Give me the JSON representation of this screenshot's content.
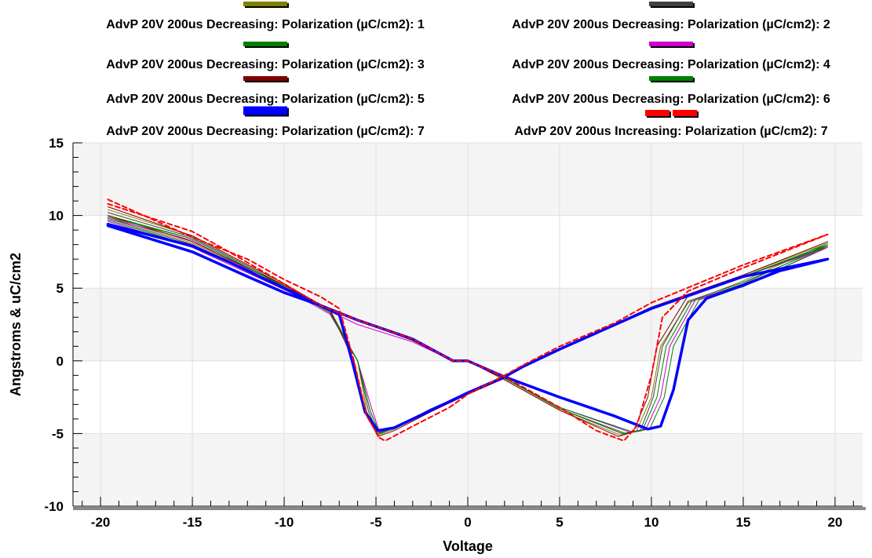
{
  "chart_data": {
    "type": "line",
    "title": "",
    "xlabel": "Voltage",
    "ylabel": "Angstroms & uC/cm2",
    "xlim": [
      -21.5,
      21.5
    ],
    "ylim": [
      -10,
      15
    ],
    "x_ticks": [
      -20,
      -15,
      -10,
      -5,
      0,
      5,
      10,
      15,
      20
    ],
    "y_ticks": [
      -10,
      -5,
      0,
      5,
      10,
      15
    ],
    "grid": true,
    "legend_position": "top",
    "series": [
      {
        "name": "AdvP 20V 200us Decreasing: Polarization (µC/cm2): 1",
        "color": "#808000",
        "style": "solid",
        "points": [
          [
            -19.6,
            10.4
          ],
          [
            -15,
            8.6
          ],
          [
            -10,
            5.3
          ],
          [
            -7.5,
            3.5
          ],
          [
            -6,
            0
          ],
          [
            -5.5,
            -3.5
          ],
          [
            -4.9,
            -5.1
          ],
          [
            -4,
            -4.7
          ],
          [
            -2,
            -3.4
          ],
          [
            0,
            -2.3
          ],
          [
            2,
            -1.2
          ],
          [
            3,
            -0.4
          ],
          [
            5,
            0.8
          ],
          [
            10,
            3.7
          ],
          [
            15,
            5.9
          ],
          [
            19.6,
            8.1
          ],
          [
            19.6,
            8.1
          ],
          [
            15,
            5.5
          ],
          [
            12,
            4
          ],
          [
            10.5,
            1
          ],
          [
            10,
            -2.5
          ],
          [
            9.2,
            -4.8
          ],
          [
            8.3,
            -5.1
          ],
          [
            5,
            -3.4
          ],
          [
            2,
            -1.3
          ],
          [
            0,
            0
          ],
          [
            -0.8,
            0
          ],
          [
            -3,
            1.4
          ],
          [
            -6,
            2.8
          ],
          [
            -8,
            3.8
          ],
          [
            -10,
            5.2
          ],
          [
            -15,
            8.1
          ],
          [
            -19.6,
            9.9
          ]
        ]
      },
      {
        "name": "AdvP 20V 200us Decreasing: Polarization (µC/cm2): 2",
        "color": "#404040",
        "style": "solid",
        "points": [
          [
            -19.6,
            10.2
          ],
          [
            -15,
            8.5
          ],
          [
            -10,
            5.2
          ],
          [
            -7.5,
            3.4
          ],
          [
            -6,
            0
          ],
          [
            -5.4,
            -3.5
          ],
          [
            -4.9,
            -5
          ],
          [
            -4,
            -4.6
          ],
          [
            -2,
            -3.3
          ],
          [
            0,
            -2.2
          ],
          [
            2,
            -1.1
          ],
          [
            3,
            -0.4
          ],
          [
            5,
            0.8
          ],
          [
            10,
            3.6
          ],
          [
            15,
            5.8
          ],
          [
            19.6,
            7.9
          ],
          [
            19.6,
            7.9
          ],
          [
            15,
            5.4
          ],
          [
            12,
            4.1
          ],
          [
            10.6,
            1
          ],
          [
            10.1,
            -2.5
          ],
          [
            9.4,
            -4.8
          ],
          [
            8.4,
            -5
          ],
          [
            5,
            -3.3
          ],
          [
            2,
            -1.2
          ],
          [
            0,
            0
          ],
          [
            -0.8,
            0
          ],
          [
            -3,
            1.5
          ],
          [
            -6,
            2.8
          ],
          [
            -8,
            3.8
          ],
          [
            -10,
            5.1
          ],
          [
            -15,
            8.0
          ],
          [
            -19.6,
            9.8
          ]
        ]
      },
      {
        "name": "AdvP 20V 200us Decreasing: Polarization (µC/cm2): 3",
        "color": "#008000",
        "style": "solid",
        "points": [
          [
            -19.6,
            10.0
          ],
          [
            -15,
            8.4
          ],
          [
            -10,
            5.1
          ],
          [
            -7.5,
            3.3
          ],
          [
            -6,
            0
          ],
          [
            -5.3,
            -3.5
          ],
          [
            -4.8,
            -5
          ],
          [
            -4,
            -4.6
          ],
          [
            -2,
            -3.3
          ],
          [
            0,
            -2.2
          ],
          [
            2,
            -1.1
          ],
          [
            3,
            -0.4
          ],
          [
            5,
            0.8
          ],
          [
            10,
            3.6
          ],
          [
            15,
            5.8
          ],
          [
            19.6,
            8.0
          ],
          [
            19.6,
            8.0
          ],
          [
            15,
            5.3
          ],
          [
            12.2,
            4.1
          ],
          [
            10.8,
            1
          ],
          [
            10.3,
            -2.5
          ],
          [
            9.5,
            -4.8
          ],
          [
            8.6,
            -5
          ],
          [
            5,
            -3.3
          ],
          [
            2,
            -1.2
          ],
          [
            0,
            0
          ],
          [
            -0.8,
            0
          ],
          [
            -3,
            1.5
          ],
          [
            -6,
            2.8
          ],
          [
            -8,
            3.8
          ],
          [
            -10,
            5.0
          ],
          [
            -15,
            7.9
          ],
          [
            -19.6,
            9.7
          ]
        ]
      },
      {
        "name": "AdvP 20V 200us Decreasing: Polarization (µC/cm2): 4",
        "color": "#cc00cc",
        "style": "solid",
        "points": [
          [
            -19.6,
            9.8
          ],
          [
            -15,
            8.3
          ],
          [
            -10,
            5.0
          ],
          [
            -7.5,
            3.2
          ],
          [
            -6,
            0
          ],
          [
            -5.2,
            -3.4
          ],
          [
            -4.8,
            -4.9
          ],
          [
            -4,
            -4.6
          ],
          [
            -2,
            -3.3
          ],
          [
            0,
            -2.2
          ],
          [
            2,
            -1.1
          ],
          [
            3,
            -0.4
          ],
          [
            5,
            0.8
          ],
          [
            10,
            3.6
          ],
          [
            15,
            5.8
          ],
          [
            19.6,
            7.8
          ],
          [
            19.6,
            7.8
          ],
          [
            15,
            5.2
          ],
          [
            12.4,
            4.2
          ],
          [
            11,
            1
          ],
          [
            10.5,
            -2.5
          ],
          [
            9.7,
            -4.7
          ],
          [
            8.8,
            -4.9
          ],
          [
            5,
            -3.2
          ],
          [
            2,
            -1.2
          ],
          [
            0,
            0
          ],
          [
            -0.8,
            0
          ],
          [
            -3,
            1.3
          ],
          [
            -6,
            2.5
          ],
          [
            -8,
            3.7
          ],
          [
            -10,
            4.9
          ],
          [
            -15,
            7.8
          ],
          [
            -19.6,
            9.6
          ]
        ]
      },
      {
        "name": "AdvP 20V 200us Decreasing: Polarization (µC/cm2): 5",
        "color": "#800000",
        "style": "solid",
        "points": [
          [
            -19.6,
            10.6
          ],
          [
            -15,
            8.6
          ],
          [
            -10,
            5.3
          ],
          [
            -7.5,
            3.5
          ],
          [
            -6.2,
            0
          ],
          [
            -5.6,
            -3.5
          ],
          [
            -4.9,
            -5.2
          ],
          [
            -4,
            -4.8
          ],
          [
            -2,
            -3.5
          ],
          [
            0,
            -2.3
          ],
          [
            2,
            -1.2
          ],
          [
            3,
            -0.4
          ],
          [
            5,
            0.8
          ],
          [
            10,
            3.7
          ],
          [
            15,
            5.9
          ],
          [
            19.6,
            8.2
          ],
          [
            19.6,
            8.2
          ],
          [
            15,
            5.9
          ],
          [
            12,
            4.5
          ],
          [
            10.3,
            1
          ],
          [
            9.8,
            -2.5
          ],
          [
            9,
            -4.9
          ],
          [
            8.2,
            -5.2
          ],
          [
            5,
            -3.4
          ],
          [
            2,
            -1.3
          ],
          [
            0,
            0
          ],
          [
            -0.8,
            0
          ],
          [
            -3,
            1.4
          ],
          [
            -6,
            2.8
          ],
          [
            -8,
            3.8
          ],
          [
            -10,
            5.2
          ],
          [
            -15,
            8.2
          ],
          [
            -19.6,
            10.0
          ]
        ]
      },
      {
        "name": "AdvP 20V 200us Decreasing: Polarization (µC/cm2): 6",
        "color": "#008000",
        "style": "solid",
        "points": [
          [
            -19.6,
            9.9
          ],
          [
            -15,
            8.4
          ],
          [
            -10,
            5.1
          ],
          [
            -7.5,
            3.3
          ],
          [
            -6,
            0
          ],
          [
            -5.3,
            -3.5
          ],
          [
            -4.8,
            -5
          ],
          [
            -4,
            -4.6
          ],
          [
            -2,
            -3.3
          ],
          [
            0,
            -2.2
          ],
          [
            2,
            -1.1
          ],
          [
            3,
            -0.4
          ],
          [
            5,
            0.8
          ],
          [
            10,
            3.6
          ],
          [
            15,
            5.8
          ],
          [
            19.6,
            7.9
          ],
          [
            19.6,
            7.9
          ],
          [
            15,
            5.1
          ],
          [
            12.6,
            4.2
          ],
          [
            11.2,
            1
          ],
          [
            10.7,
            -2.5
          ],
          [
            9.9,
            -4.7
          ],
          [
            9,
            -4.9
          ],
          [
            5,
            -3.2
          ],
          [
            2,
            -1.2
          ],
          [
            0,
            0
          ],
          [
            -0.8,
            0
          ],
          [
            -3,
            1.5
          ],
          [
            -6,
            2.8
          ],
          [
            -8,
            3.8
          ],
          [
            -10,
            5.0
          ],
          [
            -15,
            7.9
          ],
          [
            -19.6,
            9.7
          ]
        ]
      },
      {
        "name": "AdvP 20V 200us Decreasing: Polarization (µC/cm2): 7",
        "color": "#0000ff",
        "style": "solid-thick",
        "points": [
          [
            -19.6,
            9.3
          ],
          [
            -15,
            7.5
          ],
          [
            -12,
            5.8
          ],
          [
            -10,
            4.7
          ],
          [
            -8,
            3.8
          ],
          [
            -7,
            3.2
          ],
          [
            -6.3,
            0
          ],
          [
            -5.6,
            -3.5
          ],
          [
            -4.9,
            -4.8
          ],
          [
            -4,
            -4.6
          ],
          [
            -2,
            -3.4
          ],
          [
            0,
            -2.2
          ],
          [
            2,
            -1.1
          ],
          [
            3,
            -0.4
          ],
          [
            5,
            0.8
          ],
          [
            10,
            3.6
          ],
          [
            15,
            5.8
          ],
          [
            19.6,
            7.0
          ],
          [
            19.6,
            7.0
          ],
          [
            17,
            6.2
          ],
          [
            15,
            5.2
          ],
          [
            13,
            4.3
          ],
          [
            12,
            2.8
          ],
          [
            11.2,
            -2
          ],
          [
            10.5,
            -4.5
          ],
          [
            9.8,
            -4.7
          ],
          [
            8,
            -3.8
          ],
          [
            5,
            -2.5
          ],
          [
            2,
            -1.1
          ],
          [
            0,
            0
          ],
          [
            -0.8,
            0
          ],
          [
            -3,
            1.5
          ],
          [
            -6,
            2.8
          ],
          [
            -8,
            3.8
          ],
          [
            -10,
            5.0
          ],
          [
            -13,
            6.8
          ],
          [
            -15,
            7.9
          ],
          [
            -19.6,
            9.4
          ]
        ]
      },
      {
        "name": "AdvP 20V 200us Increasing: Polarization (µC/cm2): 7",
        "color": "#ff0000",
        "style": "dashed",
        "points": [
          [
            -19.6,
            11.1
          ],
          [
            -15,
            8.5
          ],
          [
            -12,
            7
          ],
          [
            -10,
            5.6
          ],
          [
            -8,
            4.4
          ],
          [
            -7,
            3.6
          ],
          [
            -6.2,
            0
          ],
          [
            -5.5,
            -3.8
          ],
          [
            -4.8,
            -5.3
          ],
          [
            -4.5,
            -5.5
          ],
          [
            -3,
            -4.5
          ],
          [
            -1,
            -3.2
          ],
          [
            0,
            -2.3
          ],
          [
            2,
            -1
          ],
          [
            3,
            -0.3
          ],
          [
            5,
            1
          ],
          [
            8,
            2.6
          ],
          [
            10,
            4
          ],
          [
            15,
            6.6
          ],
          [
            19.6,
            8.7
          ],
          [
            19.6,
            8.7
          ],
          [
            15,
            6.4
          ],
          [
            12,
            4.8
          ],
          [
            10.6,
            3
          ],
          [
            10,
            -1
          ],
          [
            9.2,
            -4.5
          ],
          [
            8.5,
            -5.5
          ],
          [
            7,
            -4.8
          ],
          [
            5,
            -3.2
          ],
          [
            2,
            -1.1
          ],
          [
            0,
            0
          ],
          [
            -0.8,
            0
          ],
          [
            -3,
            1.5
          ],
          [
            -6,
            2.8
          ],
          [
            -8,
            3.8
          ],
          [
            -10,
            5.3
          ],
          [
            -13,
            7.5
          ],
          [
            -15,
            8.9
          ],
          [
            -19.6,
            10.8
          ]
        ]
      }
    ]
  }
}
